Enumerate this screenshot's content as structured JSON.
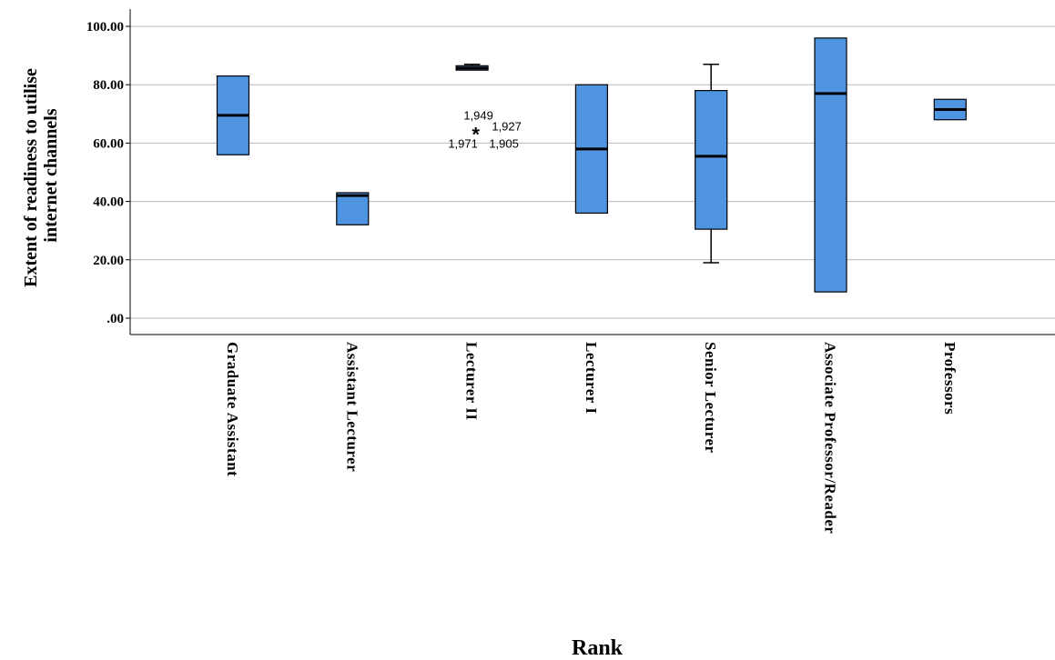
{
  "chart_data": {
    "type": "boxplot",
    "xlabel": "Rank",
    "ylabel_lines": [
      "Extent of readiness to utilise",
      "internet channels"
    ],
    "ylim": [
      0,
      105
    ],
    "yticks": [
      0,
      20,
      40,
      60,
      80,
      100
    ],
    "ytick_labels": [
      ".00",
      "20.00",
      "40.00",
      "60.00",
      "80.00",
      "100.00"
    ],
    "grid": true,
    "box_color": "#4f94e0",
    "categories": [
      "Graduate Assistant",
      "Assistant Lecturer",
      "Lecturer II",
      "Lecturer I",
      "Senior Lecturer",
      "Associate Professor/Reader",
      "Professors"
    ],
    "boxes": [
      {
        "min": 56,
        "q1": 56,
        "median": 69.5,
        "q3": 83,
        "max": 83
      },
      {
        "min": 32,
        "q1": 32,
        "median": 42,
        "q3": 43,
        "max": 43
      },
      {
        "min": 85,
        "q1": 85,
        "median": 85.7,
        "q3": 86.5,
        "max": 87
      },
      {
        "min": 36,
        "q1": 36,
        "median": 58,
        "q3": 80,
        "max": 80
      },
      {
        "min": 19,
        "q1": 30.5,
        "median": 55.5,
        "q3": 78,
        "max": 87
      },
      {
        "min": 9,
        "q1": 9,
        "median": 77,
        "q3": 96,
        "max": 96
      },
      {
        "min": 68,
        "q1": 68,
        "median": 71.5,
        "q3": 75,
        "max": 75
      }
    ],
    "outliers": [
      {
        "category": "Lecturer II",
        "value": 64,
        "marker": "*",
        "labels": [
          "1,949",
          "1,927",
          "1,971",
          "1,905"
        ]
      }
    ]
  }
}
